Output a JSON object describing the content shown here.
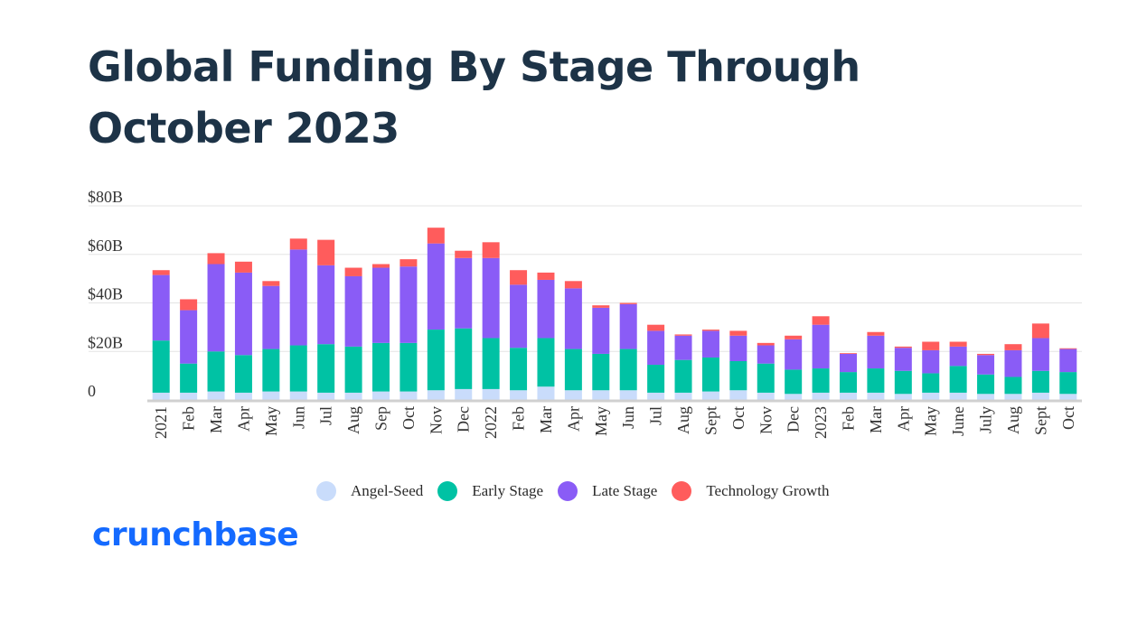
{
  "page": {
    "title": "Global Funding By Stage Through October 2023",
    "brand": "crunchbase"
  },
  "legend": [
    {
      "name": "Angel-Seed",
      "color": "#c9dcfb"
    },
    {
      "name": "Early Stage",
      "color": "#00c2a4"
    },
    {
      "name": "Late Stage",
      "color": "#8a5cf6"
    },
    {
      "name": "Technology Growth",
      "color": "#ff5c5c"
    }
  ],
  "chart_data": {
    "type": "bar",
    "stacked": true,
    "title": "Global Funding By Stage Through October 2023",
    "xlabel": "",
    "ylabel": "",
    "ylim": [
      0,
      80
    ],
    "y_unit": "B",
    "y_ticks": [
      {
        "value": 0,
        "label": "0"
      },
      {
        "value": 20,
        "label": "$20B"
      },
      {
        "value": 40,
        "label": "$40B"
      },
      {
        "value": 60,
        "label": "$60B"
      },
      {
        "value": 80,
        "label": "$80B"
      }
    ],
    "grid": true,
    "legend_position": "bottom",
    "categories": [
      "2021",
      "Feb",
      "Mar",
      "Apr",
      "May",
      "Jun",
      "Jul",
      "Aug",
      "Sep",
      "Oct",
      "Nov",
      "Dec",
      "2022",
      "Feb",
      "Mar",
      "Apr",
      "May",
      "Jun",
      "Jul",
      "Aug",
      "Sept",
      "Oct",
      "Nov",
      "Dec",
      "2023",
      "Feb",
      "Mar",
      "Apr",
      "May",
      "June",
      "July",
      "Aug",
      "Sept",
      "Oct"
    ],
    "series": [
      {
        "name": "Angel-Seed",
        "color": "#c9dcfb",
        "values": [
          3,
          3,
          3.5,
          3,
          3.5,
          3.5,
          3,
          3,
          3.5,
          3.5,
          4,
          4.5,
          4.5,
          4,
          5.5,
          4,
          4,
          4,
          3,
          3,
          3.5,
          4,
          3,
          2.5,
          3,
          3,
          3,
          2.5,
          3,
          3,
          2.5,
          2.5,
          3,
          2.5
        ]
      },
      {
        "name": "Early Stage",
        "color": "#00c2a4",
        "values": [
          21.5,
          12,
          16.5,
          15.5,
          17.5,
          19,
          20,
          19,
          20,
          20,
          25,
          25,
          21,
          17.5,
          20,
          17,
          15,
          17,
          11.5,
          13.5,
          14,
          12,
          12,
          10,
          10,
          8.5,
          10,
          9.5,
          8,
          11,
          8,
          7,
          9,
          9
        ]
      },
      {
        "name": "Late Stage",
        "color": "#8a5cf6",
        "values": [
          27,
          22,
          36,
          34,
          26,
          39.5,
          32.5,
          29,
          31,
          31.5,
          35.5,
          29,
          33,
          26,
          24,
          25,
          19,
          18.5,
          14,
          10,
          11,
          10.5,
          7.5,
          12.5,
          18,
          7.5,
          13.5,
          9.5,
          9.5,
          8,
          8,
          11,
          13.5,
          9.5
        ]
      },
      {
        "name": "Technology Growth",
        "color": "#ff5c5c",
        "values": [
          2,
          4.5,
          4.5,
          4.5,
          2,
          4.5,
          10.5,
          3.5,
          1.5,
          3,
          6.5,
          3,
          6.5,
          6,
          3,
          3,
          1,
          0.5,
          2.5,
          0.5,
          0.5,
          2,
          1,
          1.5,
          3.5,
          0.3,
          1.5,
          0.5,
          3.5,
          2,
          0.5,
          2.5,
          6,
          0.3
        ]
      }
    ]
  }
}
